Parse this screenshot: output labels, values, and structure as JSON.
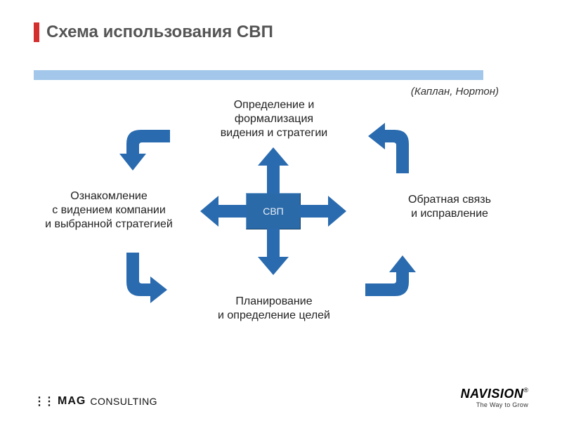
{
  "title": "Схема использования СВП",
  "attribution": "(Каплан, Нортон)",
  "colors": {
    "accent_red": "#d32f2f",
    "title_text": "#555555",
    "hr_bar": "#a3c7ea",
    "arrow_blue": "#2a6bb0",
    "center_box": "#2b6aa8",
    "center_text": "#e8f0f8",
    "node_text": "#222222",
    "background": "#ffffff"
  },
  "diagram": {
    "type": "flowchart",
    "center_label": "СВП",
    "nodes": {
      "top": "Определение и\nформализация\nвидения и стратегии",
      "left": "Ознакомление\nс видением компании\nи выбранной стратегией",
      "right": "Обратная связь\nи исправление",
      "bottom": "Планирование\nи определение целей"
    },
    "center_arrows": [
      "up",
      "down",
      "left",
      "right"
    ],
    "cycle_arrows": [
      {
        "pos": "top-left",
        "from": "top",
        "to": "left",
        "rotation_deg": 0
      },
      {
        "pos": "bottom-left",
        "from": "left",
        "to": "bottom",
        "rotation_deg": 270
      },
      {
        "pos": "bottom-right",
        "from": "bottom",
        "to": "right",
        "rotation_deg": 180
      },
      {
        "pos": "top-right",
        "from": "right",
        "to": "top",
        "rotation_deg": 90
      }
    ],
    "arrow_stroke_width": 18,
    "node_fontsize": 16,
    "center_fontsize": 14
  },
  "logos": {
    "left": {
      "dots": "⋮⋮",
      "brand": "MAG",
      "suffix": "CONSULTING"
    },
    "right": {
      "brand": "NAVISION",
      "reg": "®",
      "tagline": "The Way to Grow"
    }
  }
}
